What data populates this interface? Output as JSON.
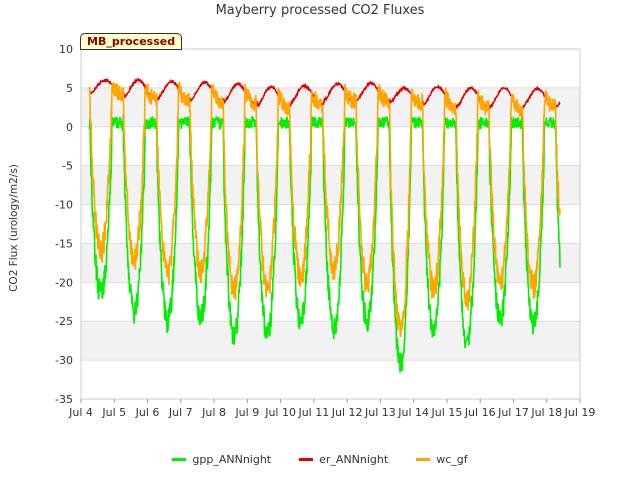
{
  "chart_data": {
    "type": "line",
    "title": "Mayberry processed CO2 Fluxes",
    "ylabel": "CO2 Flux (urology/m2/s)",
    "xlabel": "",
    "badge": "MB_processed",
    "ylim": [
      -35,
      10
    ],
    "xlim": [
      4,
      19
    ],
    "yticks": [
      10,
      5,
      0,
      -5,
      -10,
      -15,
      -20,
      -25,
      -30,
      -35
    ],
    "xticks": [
      {
        "value": 4,
        "label": "Jul 4"
      },
      {
        "value": 5,
        "label": "Jul 5"
      },
      {
        "value": 6,
        "label": "Jul 6"
      },
      {
        "value": 7,
        "label": "Jul 7"
      },
      {
        "value": 8,
        "label": "Jul 8"
      },
      {
        "value": 9,
        "label": "Jul 9"
      },
      {
        "value": 10,
        "label": "Jul 10"
      },
      {
        "value": 11,
        "label": "Jul 11"
      },
      {
        "value": 12,
        "label": "Jul 12"
      },
      {
        "value": 13,
        "label": "Jul 13"
      },
      {
        "value": 14,
        "label": "Jul 14"
      },
      {
        "value": 15,
        "label": "Jul 15"
      },
      {
        "value": 16,
        "label": "Jul 16"
      },
      {
        "value": 17,
        "label": "Jul 17"
      },
      {
        "value": 18,
        "label": "Jul 18"
      },
      {
        "value": 19,
        "label": "Jul 19"
      }
    ],
    "x_range": [
      4.25,
      18.4
    ],
    "series": [
      {
        "name": "gpp_ANNnight",
        "color": "#00ee00",
        "night_value": 0.5,
        "daily_min": [
          -21.5,
          -24,
          -25,
          -24.5,
          -27,
          -27,
          -25,
          -26,
          -25,
          -30.5,
          -26.5,
          -27.5,
          -25,
          -25.5
        ]
      },
      {
        "name": "er_ANNnight",
        "color": "#dd0000",
        "daily_peak": [
          6,
          6,
          5.8,
          5.7,
          5.5,
          5.1,
          5.3,
          5.5,
          5.6,
          5.0,
          5.2,
          5.0,
          5.0,
          4.9
        ],
        "daily_trough": [
          4.2,
          3.6,
          3.4,
          3.3,
          3.0,
          2.5,
          2.8,
          3.2,
          3.3,
          3.0,
          2.6,
          2.4,
          2.3,
          2.5
        ]
      },
      {
        "name": "wc_gf",
        "color": "#ffa500",
        "daily_min": [
          -16,
          -17,
          -19,
          -18.5,
          -21,
          -21,
          -19.5,
          -18,
          -20.5,
          -26,
          -21,
          -22.5,
          -20.5,
          -20.5
        ]
      }
    ]
  }
}
